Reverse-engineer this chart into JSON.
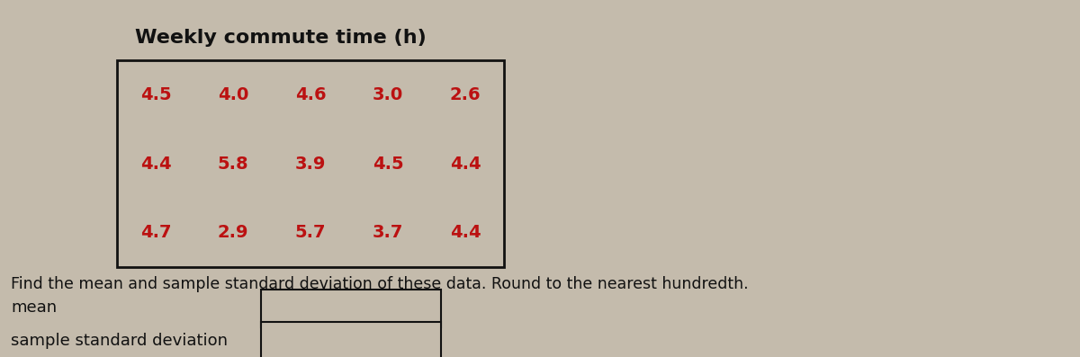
{
  "title": "Weekly commute time (h)",
  "table_data": [
    [
      "4.5",
      "4.0",
      "4.6",
      "3.0",
      "2.6"
    ],
    [
      "4.4",
      "5.8",
      "3.9",
      "4.5",
      "4.4"
    ],
    [
      "4.7",
      "2.9",
      "5.7",
      "3.7",
      "4.4"
    ]
  ],
  "instruction_text": "Find the mean and sample standard deviation of these data. Round to the nearest hundredth.",
  "label_mean": "mean",
  "label_std": "sample standard deviation",
  "bg_color": "#c4bbac",
  "table_text_color": "#bb1111",
  "title_color": "#111111",
  "body_text_color": "#111111",
  "table_bg_color": "#c4bbac",
  "table_border_color": "#111111",
  "box_fill_color": "#c4bbac",
  "box_edge_color": "#111111",
  "title_fontsize": 16,
  "table_fontsize": 14,
  "body_fontsize": 12.5,
  "label_fontsize": 13
}
